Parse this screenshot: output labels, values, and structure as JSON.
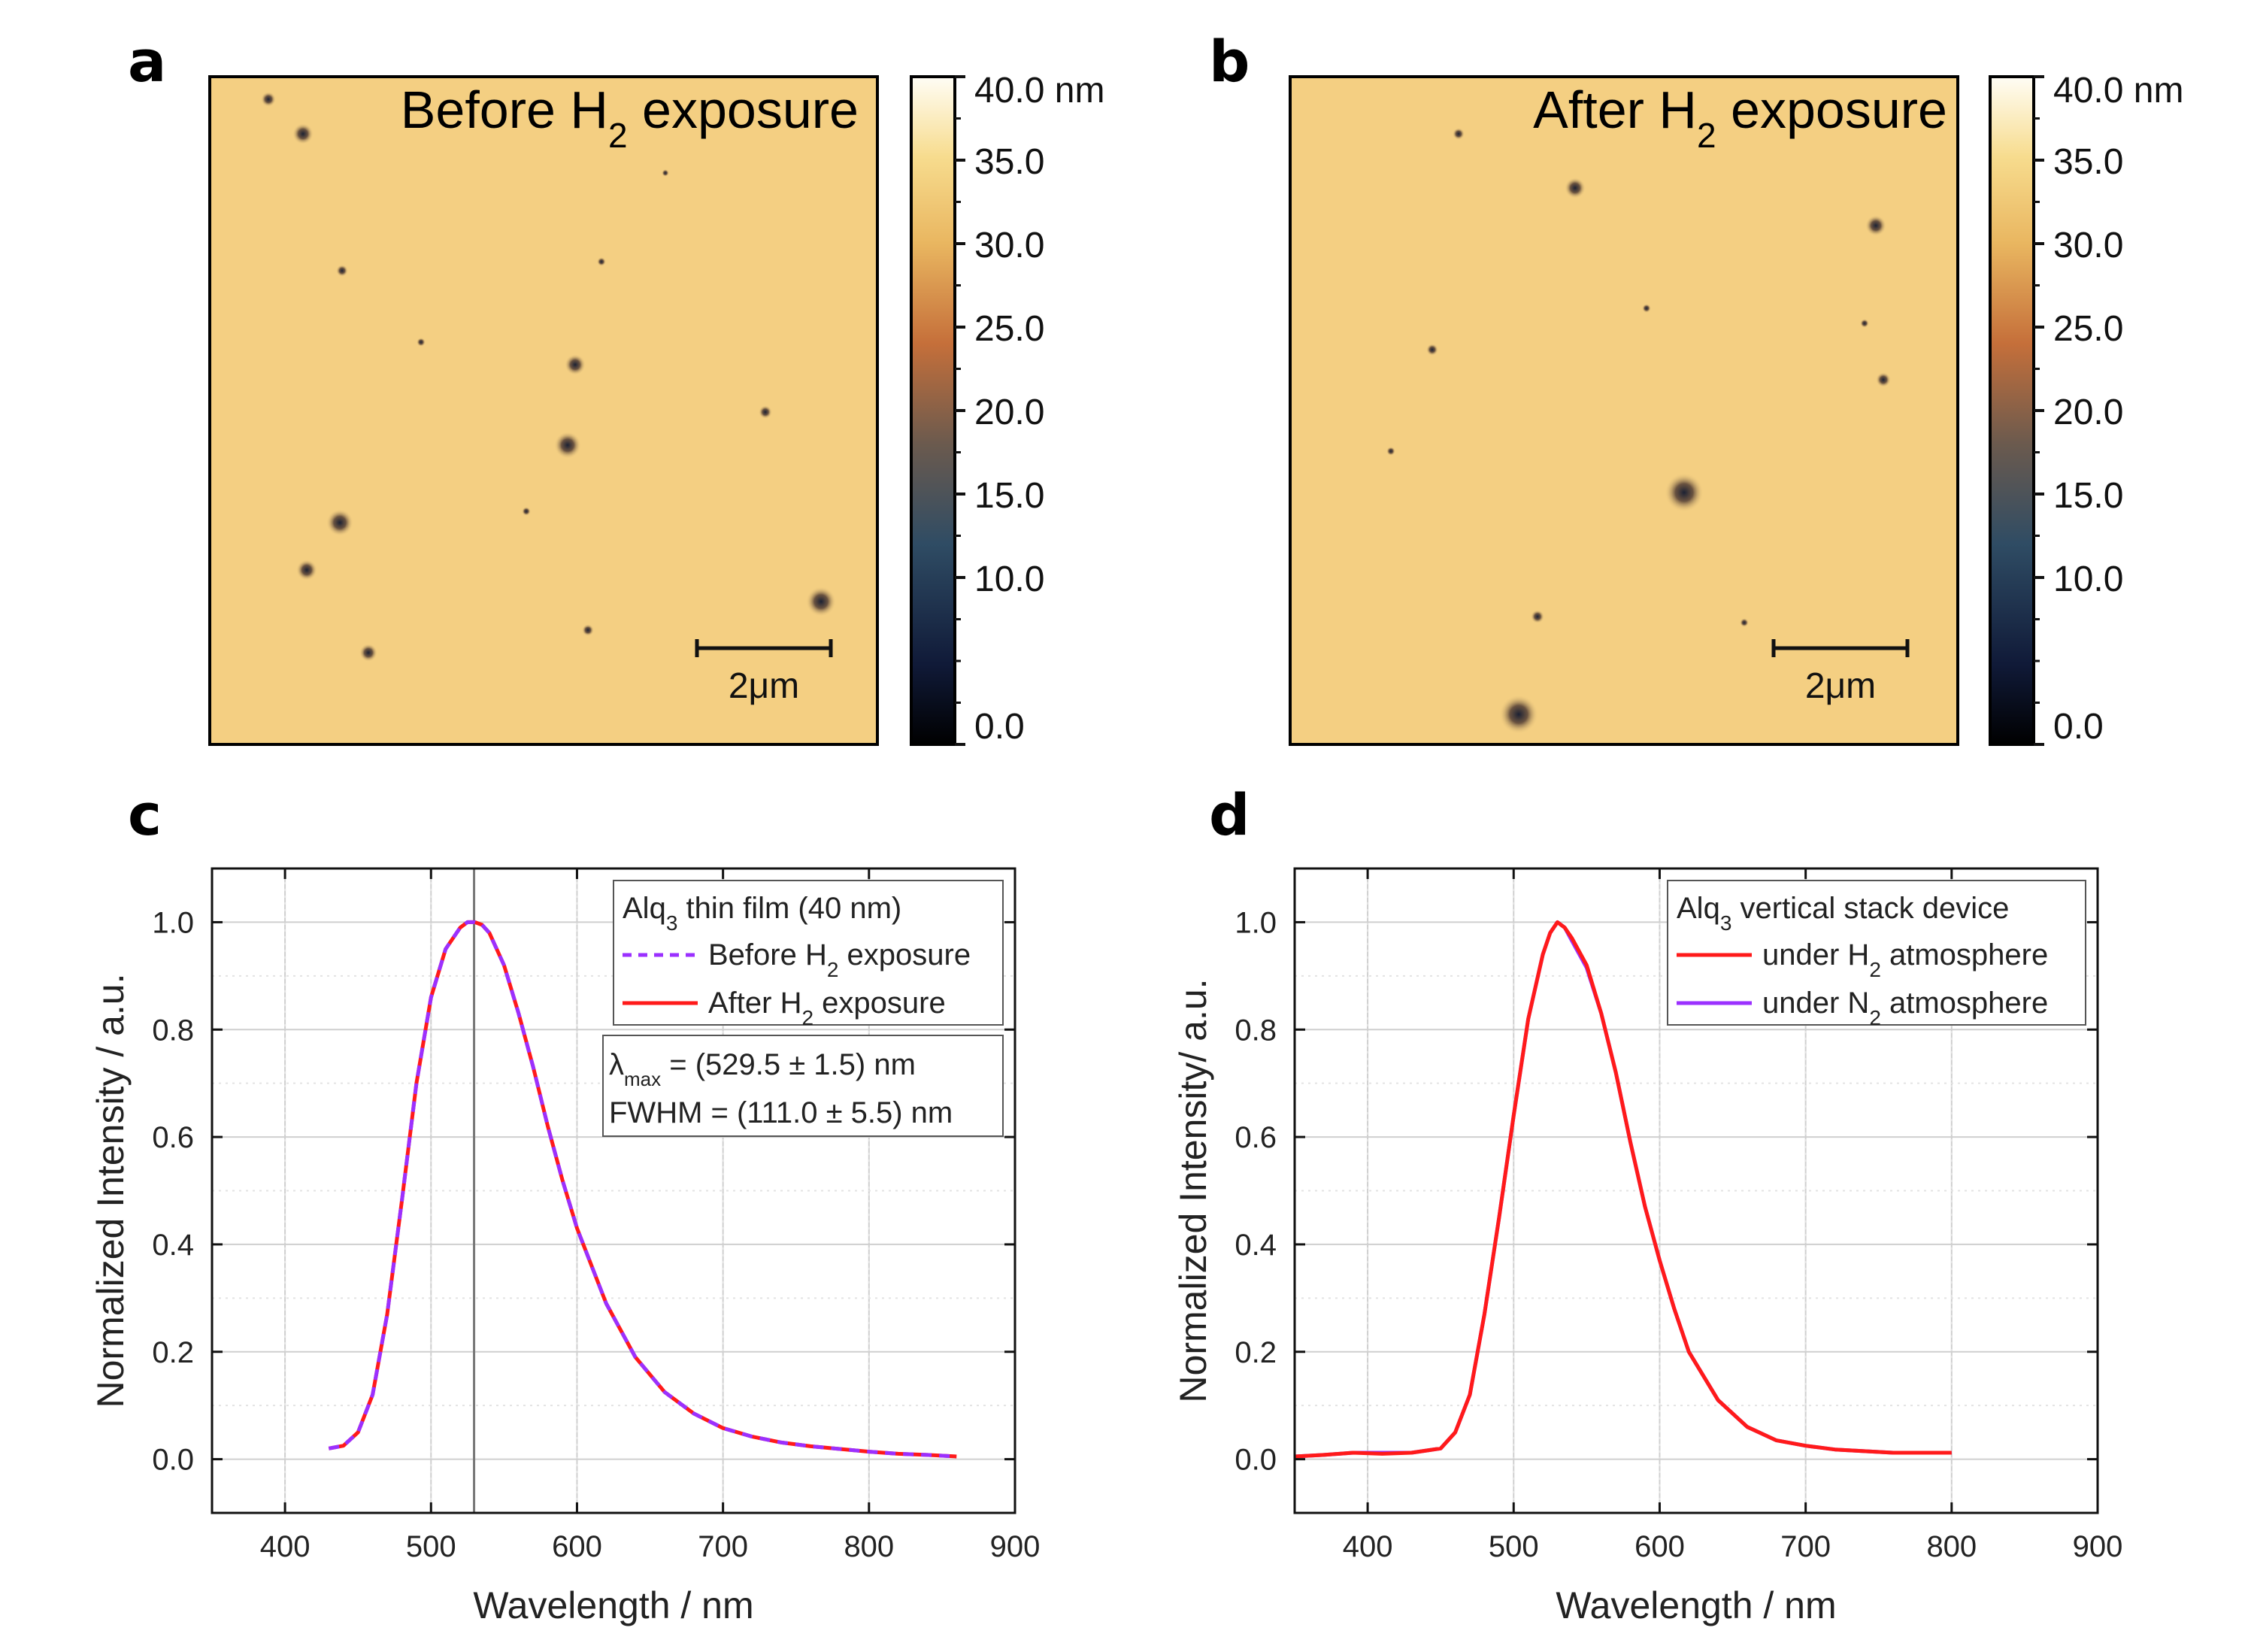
{
  "afm_panels": [
    {
      "letter": "a",
      "title_pre": "Before H",
      "title_sub": "2",
      "title_post": " exposure",
      "scale_label": "2μm",
      "colorbar_ticks": [
        "40.0 nm",
        "35.0",
        "30.0",
        "25.0",
        "20.0",
        "15.0",
        "10.0",
        "0.0"
      ],
      "colorbar_values": [
        40,
        35,
        30,
        25,
        20,
        15,
        10,
        0
      ],
      "colors": {
        "high": "#fff7e2",
        "film": "#f4cf82",
        "mid": "#c9783d",
        "low": "#253553",
        "floor": "#000000"
      }
    },
    {
      "letter": "b",
      "title_pre": "After H",
      "title_sub": "2",
      "title_post": " exposure",
      "scale_label": "2μm",
      "colorbar_ticks": [
        "40.0 nm",
        "35.0",
        "30.0",
        "25.0",
        "20.0",
        "15.0",
        "10.0",
        "0.0"
      ],
      "colorbar_values": [
        40,
        35,
        30,
        25,
        20,
        15,
        10,
        0
      ],
      "colors": {
        "high": "#fff7e2",
        "film": "#f4cf82",
        "mid": "#c9783d",
        "low": "#253553",
        "floor": "#000000"
      }
    }
  ],
  "chart_data": [
    {
      "panel": "c",
      "type": "line",
      "xlabel": "Wavelength / nm",
      "ylabel": "Normalized Intensity / a.u.",
      "xlim": [
        350,
        900
      ],
      "ylim": [
        -0.1,
        1.1
      ],
      "xticks": [
        400,
        500,
        600,
        700,
        800,
        900
      ],
      "yticks": [
        0.0,
        0.2,
        0.4,
        0.6,
        0.8,
        1.0
      ],
      "xtick_labels": [
        "400",
        "500",
        "600",
        "700",
        "800",
        "900"
      ],
      "ytick_labels": [
        "0.0",
        "0.2",
        "0.4",
        "0.6",
        "0.8",
        "1.0"
      ],
      "grid": true,
      "vline_x": 529.5,
      "legend": {
        "title_pre": "Alq",
        "title_sub": "3",
        "title_post": " thin film (40 nm)",
        "entries": [
          {
            "pre": "Before H",
            "sub": "2",
            "post": " exposure",
            "style": "dashed",
            "color": "#9b30ff"
          },
          {
            "pre": "After H",
            "sub": "2",
            "post": " exposure",
            "style": "solid",
            "color": "#ff1a1a"
          }
        ]
      },
      "annotation": {
        "line1_symbol": "λ",
        "line1_sub": "max",
        "line1_post": " = (529.5 ± 1.5) nm",
        "line2": "FWHM = (111.0 ± 5.5) nm"
      },
      "series": [
        {
          "name": "Before H2 exposure",
          "color": "#9b30ff",
          "style": "dashed",
          "x": [
            430,
            440,
            450,
            460,
            470,
            480,
            490,
            500,
            510,
            520,
            525,
            530,
            535,
            540,
            550,
            560,
            570,
            580,
            590,
            600,
            620,
            640,
            660,
            680,
            700,
            720,
            740,
            760,
            780,
            800,
            820,
            840,
            860
          ],
          "y": [
            0.02,
            0.025,
            0.05,
            0.12,
            0.27,
            0.48,
            0.7,
            0.86,
            0.95,
            0.99,
            1.0,
            1.0,
            0.995,
            0.98,
            0.92,
            0.83,
            0.73,
            0.62,
            0.52,
            0.43,
            0.29,
            0.19,
            0.125,
            0.085,
            0.058,
            0.042,
            0.031,
            0.024,
            0.019,
            0.014,
            0.01,
            0.008,
            0.005
          ]
        },
        {
          "name": "After H2 exposure",
          "color": "#ff1a1a",
          "style": "solid",
          "x": [
            430,
            440,
            450,
            460,
            470,
            480,
            490,
            500,
            510,
            520,
            525,
            530,
            535,
            540,
            550,
            560,
            570,
            580,
            590,
            600,
            620,
            640,
            660,
            680,
            700,
            720,
            740,
            760,
            780,
            800,
            820,
            840,
            860
          ],
          "y": [
            0.02,
            0.025,
            0.05,
            0.12,
            0.27,
            0.48,
            0.7,
            0.86,
            0.95,
            0.99,
            1.0,
            1.0,
            0.995,
            0.98,
            0.92,
            0.83,
            0.73,
            0.62,
            0.52,
            0.43,
            0.29,
            0.19,
            0.125,
            0.085,
            0.058,
            0.042,
            0.031,
            0.024,
            0.019,
            0.014,
            0.01,
            0.008,
            0.005
          ]
        }
      ]
    },
    {
      "panel": "d",
      "type": "line",
      "xlabel": "Wavelength / nm",
      "ylabel": "Normalized Intensity/ a.u.",
      "xlim": [
        350,
        900
      ],
      "ylim": [
        -0.1,
        1.1
      ],
      "xticks": [
        400,
        500,
        600,
        700,
        800,
        900
      ],
      "yticks": [
        0.0,
        0.2,
        0.4,
        0.6,
        0.8,
        1.0
      ],
      "xtick_labels": [
        "400",
        "500",
        "600",
        "700",
        "800",
        "900"
      ],
      "ytick_labels": [
        "0.0",
        "0.2",
        "0.4",
        "0.6",
        "0.8",
        "1.0"
      ],
      "grid": true,
      "legend": {
        "title_pre": "Alq",
        "title_sub": "3",
        "title_post": " vertical stack device",
        "entries": [
          {
            "pre": "under H",
            "sub": "2",
            "post": " atmosphere",
            "style": "solid",
            "color": "#ff1a1a"
          },
          {
            "pre": "under N",
            "sub": "2",
            "post": " atmosphere",
            "style": "solid",
            "color": "#9b30ff"
          }
        ]
      },
      "series": [
        {
          "name": "under H2 atmosphere",
          "color": "#ff1a1a",
          "style": "solid",
          "x": [
            350,
            370,
            390,
            410,
            430,
            450,
            460,
            470,
            480,
            490,
            500,
            510,
            520,
            525,
            530,
            535,
            540,
            550,
            560,
            570,
            580,
            590,
            600,
            610,
            620,
            640,
            660,
            680,
            700,
            720,
            740,
            760,
            780,
            800
          ],
          "y": [
            0.005,
            0.008,
            0.012,
            0.01,
            0.012,
            0.02,
            0.05,
            0.12,
            0.27,
            0.45,
            0.64,
            0.82,
            0.94,
            0.98,
            1.0,
            0.99,
            0.97,
            0.92,
            0.83,
            0.72,
            0.59,
            0.47,
            0.37,
            0.28,
            0.2,
            0.11,
            0.06,
            0.035,
            0.025,
            0.018,
            0.015,
            0.012,
            0.012,
            0.012
          ]
        },
        {
          "name": "under N2 atmosphere",
          "color": "#9b30ff",
          "style": "solid",
          "x": [
            350,
            370,
            390,
            410,
            430,
            450,
            460,
            470,
            480,
            490,
            500,
            510,
            520,
            525,
            530,
            535,
            540,
            550,
            560,
            570,
            580,
            590,
            600,
            610,
            620,
            640,
            660,
            680,
            700,
            720,
            740,
            760,
            780,
            800
          ],
          "y": [
            0.005,
            0.008,
            0.012,
            0.012,
            0.012,
            0.02,
            0.05,
            0.12,
            0.27,
            0.45,
            0.64,
            0.82,
            0.94,
            0.98,
            1.0,
            0.99,
            0.965,
            0.915,
            0.83,
            0.72,
            0.59,
            0.47,
            0.37,
            0.28,
            0.2,
            0.11,
            0.06,
            0.035,
            0.025,
            0.018,
            0.015,
            0.012,
            0.012,
            0.012
          ]
        }
      ]
    }
  ]
}
